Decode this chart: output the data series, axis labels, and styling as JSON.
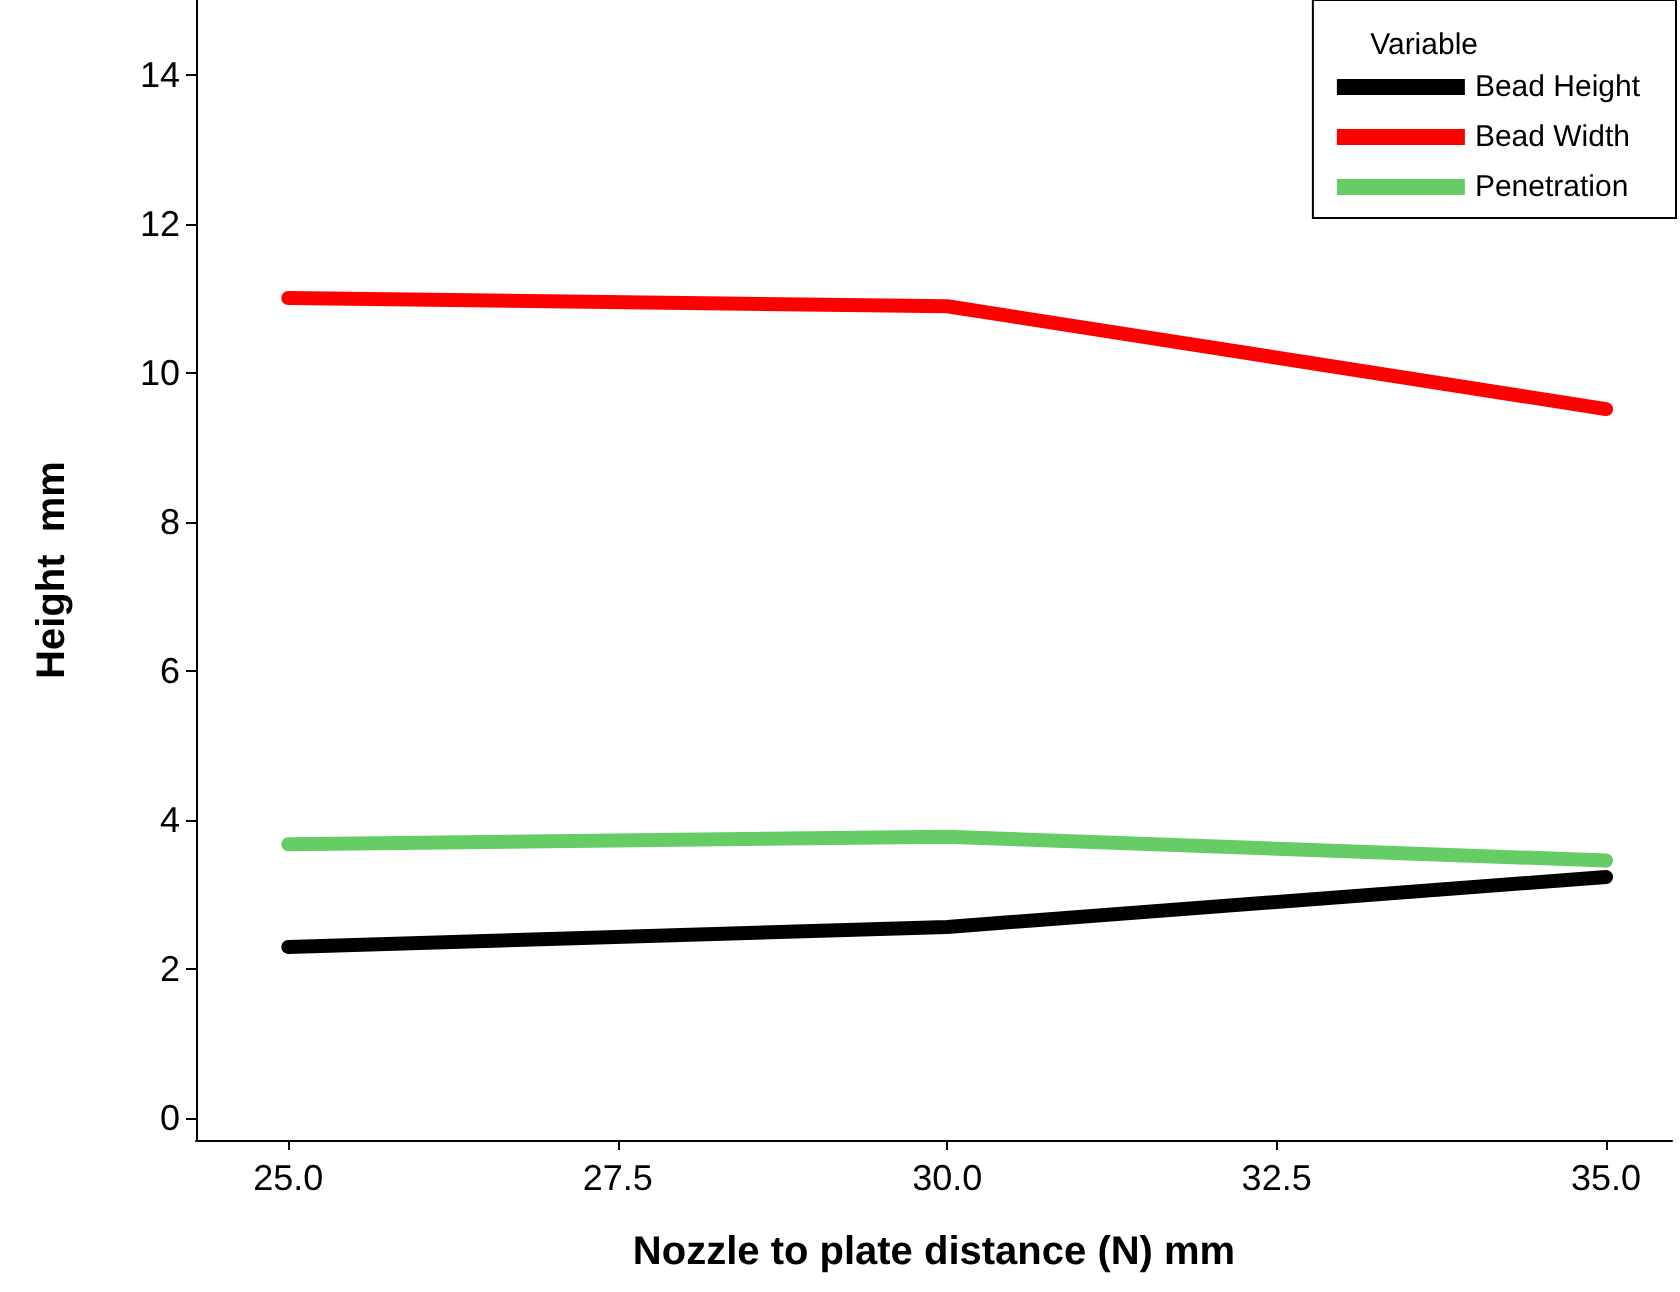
{
  "chart_data": {
    "type": "line",
    "xlabel": "Nozzle to plate distance (N) mm",
    "ylabel": "Height  mm",
    "legend_title": "Variable",
    "x": [
      25,
      30,
      35
    ],
    "series": [
      {
        "name": "Bead Height",
        "color": "#000000",
        "values": [
          2.29,
          2.56,
          3.23
        ]
      },
      {
        "name": "Bead Width",
        "color": "#ff0000",
        "values": [
          11.0,
          10.89,
          9.51
        ]
      },
      {
        "name": "Penetration",
        "color": "#66cc66",
        "values": [
          3.67,
          3.77,
          3.45
        ]
      }
    ],
    "xlim": [
      24.3,
      35.5
    ],
    "xticks": [
      {
        "value": 25,
        "label": "25.0"
      },
      {
        "value": 27.5,
        "label": "27.5"
      },
      {
        "value": 30,
        "label": "30.0"
      },
      {
        "value": 32.5,
        "label": "32.5"
      },
      {
        "value": 35,
        "label": "35.0"
      }
    ],
    "ylim": [
      -0.3,
      15
    ],
    "yticks": [
      0,
      2,
      4,
      6,
      8,
      10,
      12,
      14
    ],
    "grid": false,
    "legend": "top right",
    "line_style": "solid"
  }
}
